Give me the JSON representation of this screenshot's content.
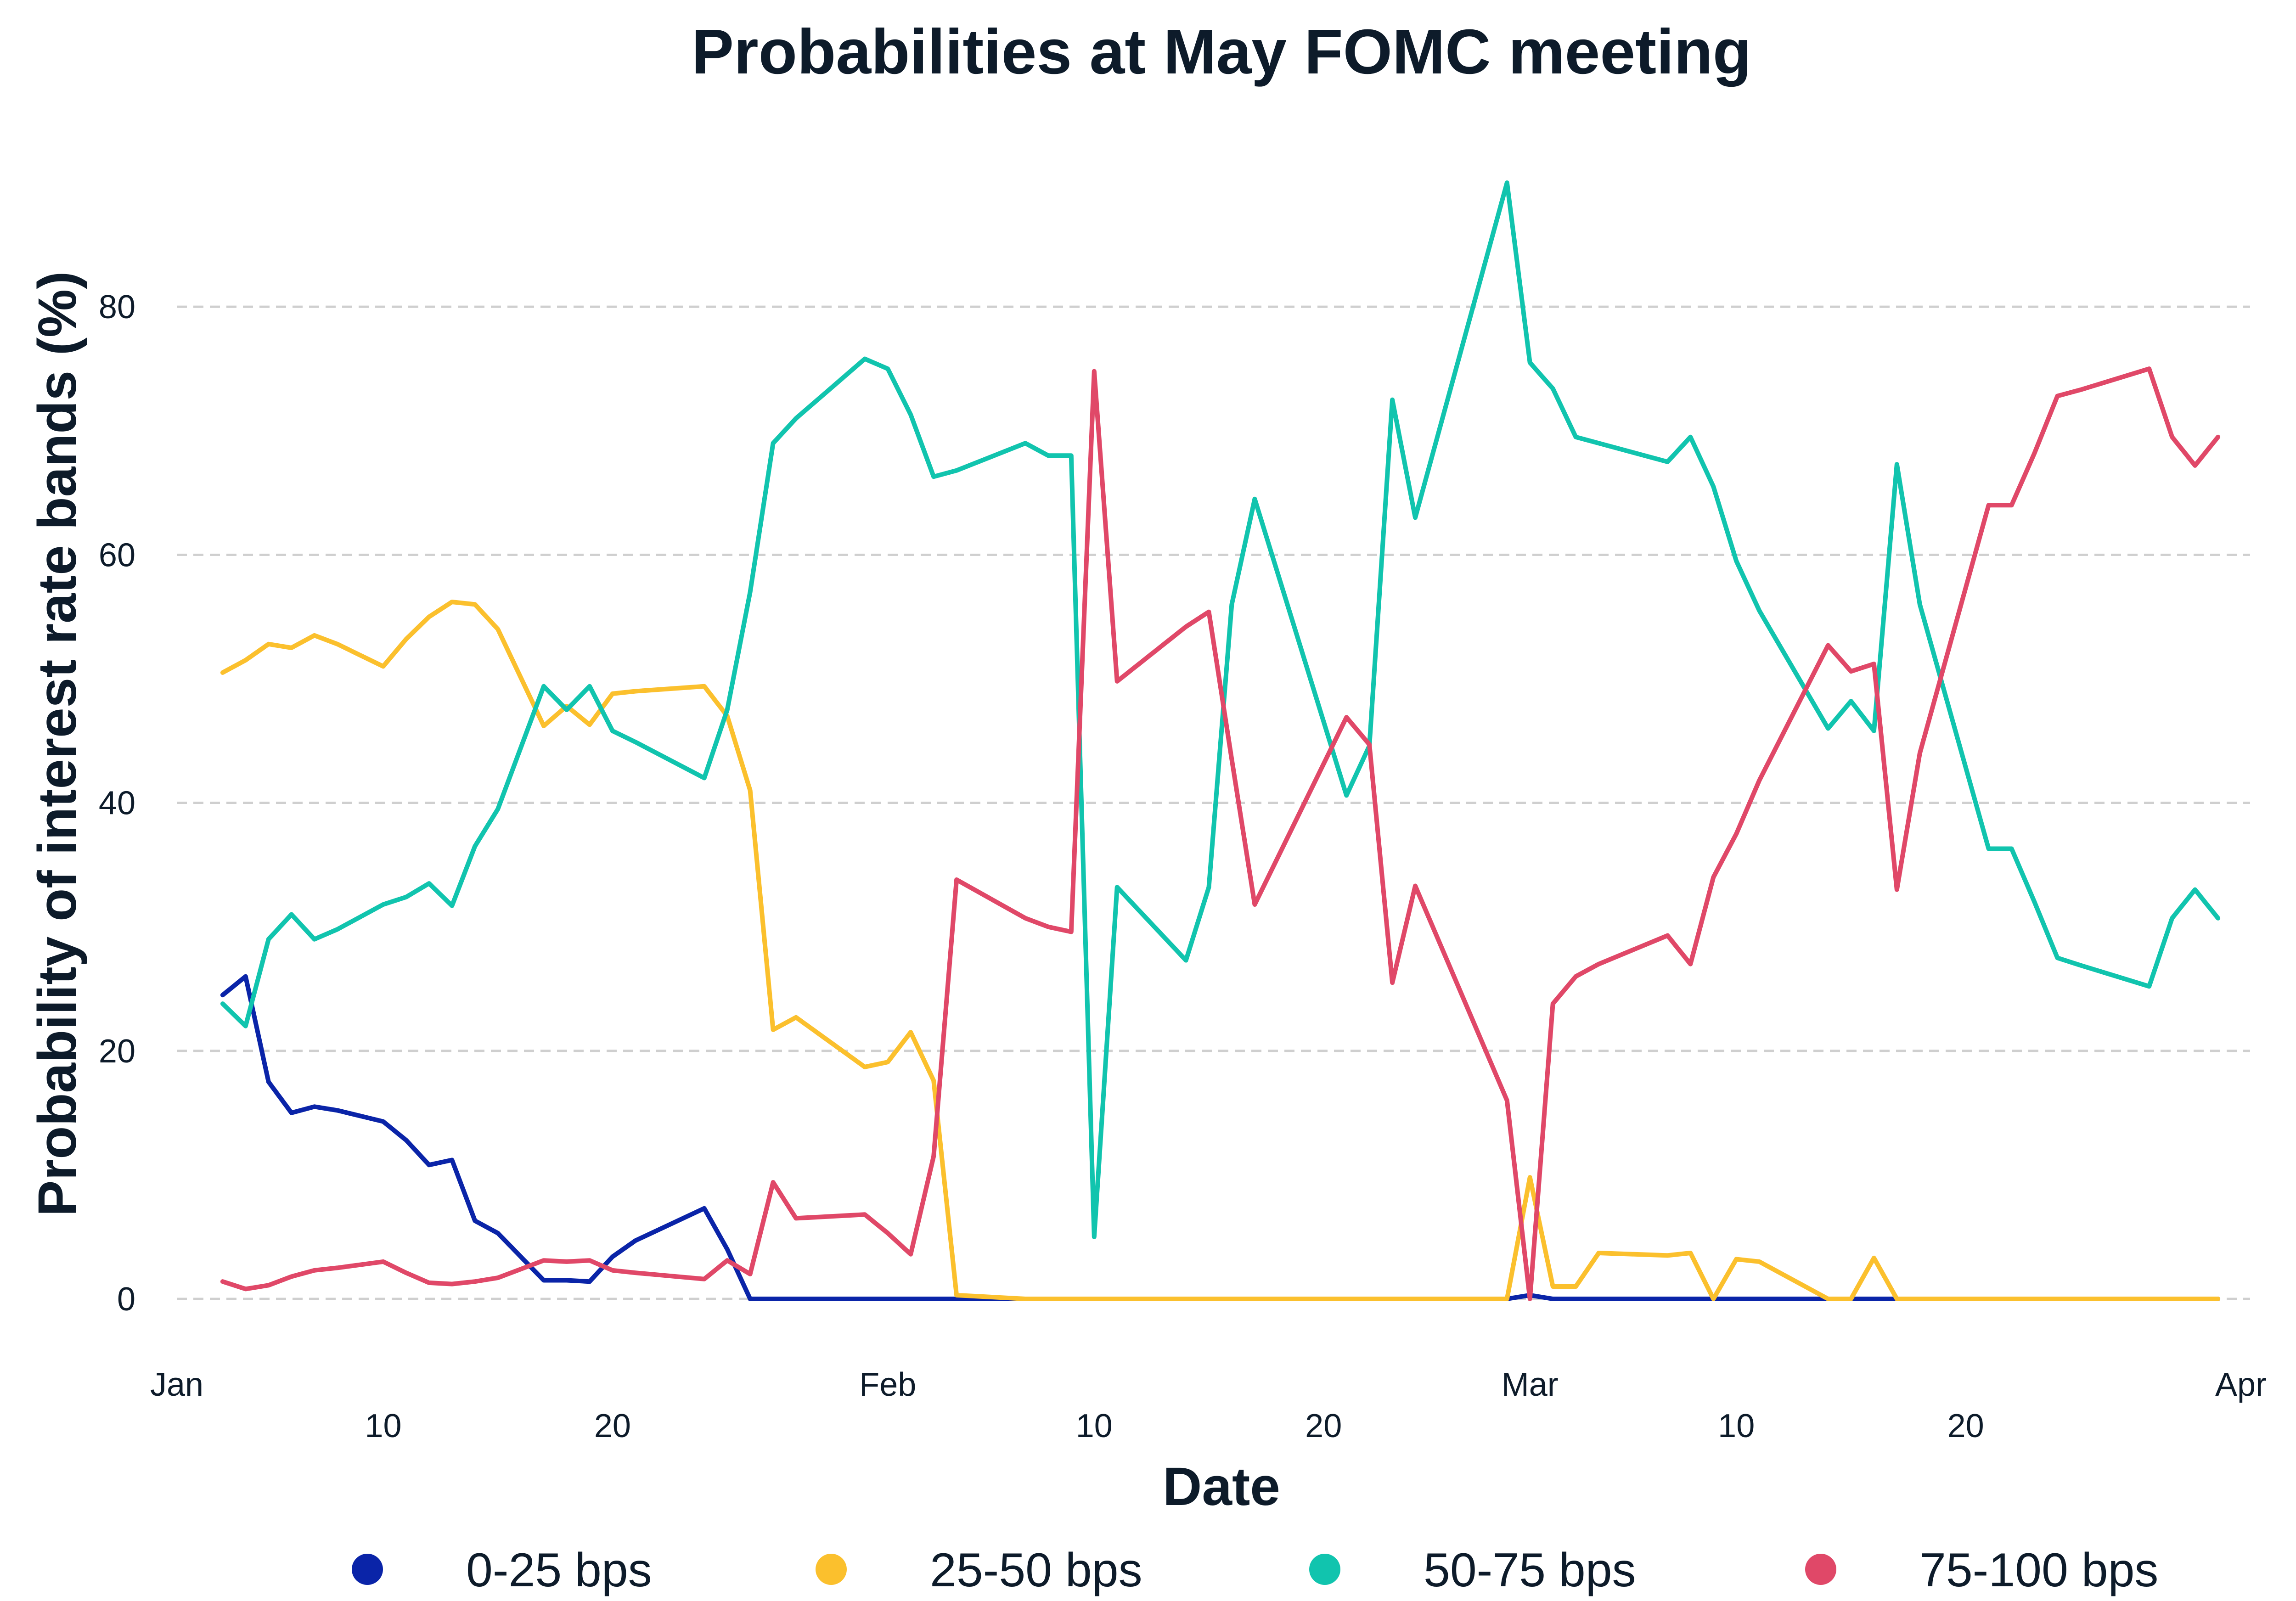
{
  "chart_data": {
    "type": "line",
    "title": "Probabilities at May FOMC meeting",
    "xlabel": "Date",
    "ylabel": "Probability of interest rate bands (%)",
    "ylim": [
      -3,
      94
    ],
    "xlim": [
      "2023-01-01",
      "2023-04-01"
    ],
    "yticks": [
      0,
      20,
      40,
      60,
      80
    ],
    "xticks": [
      {
        "date": "2023-01-01",
        "label": "Jan",
        "row": 0
      },
      {
        "date": "2023-01-10",
        "label": "10",
        "row": 1
      },
      {
        "date": "2023-01-20",
        "label": "20",
        "row": 1
      },
      {
        "date": "2023-02-01",
        "label": "Feb",
        "row": 0
      },
      {
        "date": "2023-02-10",
        "label": "10",
        "row": 1
      },
      {
        "date": "2023-02-20",
        "label": "20",
        "row": 1
      },
      {
        "date": "2023-03-01",
        "label": "Mar",
        "row": 0
      },
      {
        "date": "2023-03-10",
        "label": "10",
        "row": 1
      },
      {
        "date": "2023-03-20",
        "label": "20",
        "row": 1
      },
      {
        "date": "2023-04-01",
        "label": "Apr",
        "row": 0
      }
    ],
    "grid": true,
    "legend": "bottom",
    "x": [
      "2023-01-03",
      "2023-01-04",
      "2023-01-05",
      "2023-01-06",
      "2023-01-07",
      "2023-01-08",
      "2023-01-10",
      "2023-01-11",
      "2023-01-12",
      "2023-01-13",
      "2023-01-14",
      "2023-01-15",
      "2023-01-17",
      "2023-01-18",
      "2023-01-19",
      "2023-01-20",
      "2023-01-21",
      "2023-01-24",
      "2023-01-25",
      "2023-01-26",
      "2023-01-27",
      "2023-01-28",
      "2023-01-31",
      "2023-02-01",
      "2023-02-02",
      "2023-02-03",
      "2023-02-04",
      "2023-02-07",
      "2023-02-08",
      "2023-02-09",
      "2023-02-10",
      "2023-02-11",
      "2023-02-14",
      "2023-02-15",
      "2023-02-16",
      "2023-02-17",
      "2023-02-21",
      "2023-02-22",
      "2023-02-23",
      "2023-02-24",
      "2023-02-28",
      "2023-03-01",
      "2023-03-02",
      "2023-03-03",
      "2023-03-04",
      "2023-03-07",
      "2023-03-08",
      "2023-03-09",
      "2023-03-10",
      "2023-03-11",
      "2023-03-14",
      "2023-03-15",
      "2023-03-16",
      "2023-03-17",
      "2023-03-18",
      "2023-03-21",
      "2023-03-22",
      "2023-03-23",
      "2023-03-24",
      "2023-03-25",
      "2023-03-28",
      "2023-03-29",
      "2023-03-30",
      "2023-03-31"
    ],
    "series": [
      {
        "name": "0-25 bps",
        "color": "#0a24a8",
        "values": [
          24.5,
          26.0,
          17.5,
          15.0,
          15.5,
          15.2,
          14.3,
          12.8,
          10.8,
          11.2,
          6.3,
          5.3,
          1.5,
          1.5,
          1.4,
          3.4,
          4.7,
          7.3,
          4.0,
          0.0,
          0.0,
          0.0,
          0.0,
          0.0,
          0.0,
          0.0,
          0.0,
          0.0,
          0.0,
          0.0,
          0.0,
          0.0,
          0.0,
          0.0,
          0.0,
          0.0,
          0.0,
          0.0,
          0.0,
          0.0,
          0.0,
          0.3,
          0.0,
          0.0,
          0.0,
          0.0,
          0.0,
          0.0,
          0.0,
          0.0,
          0.0,
          0.0,
          0.0,
          0.0,
          0.0,
          0.0,
          0.0,
          0.0,
          0.0,
          0.0,
          0.0,
          0.0,
          0.0,
          0.0
        ]
      },
      {
        "name": "25-50 bps",
        "color": "#fbc02d",
        "values": [
          50.5,
          51.5,
          52.8,
          52.5,
          53.5,
          52.8,
          51.0,
          53.2,
          55.0,
          56.2,
          56.0,
          54.0,
          46.2,
          47.8,
          46.3,
          48.8,
          49.0,
          49.4,
          47.0,
          41.0,
          21.7,
          22.7,
          18.7,
          19.1,
          21.5,
          17.6,
          0.3,
          0.0,
          0.0,
          0.0,
          0.0,
          0.0,
          0.0,
          0.0,
          0.0,
          0.0,
          0.0,
          0.0,
          0.0,
          0.0,
          0.0,
          9.8,
          1.0,
          1.0,
          3.7,
          3.5,
          3.7,
          0.0,
          3.2,
          3.0,
          0.0,
          0.0,
          3.3,
          0.0,
          0.0,
          0.0,
          0.0,
          0.0,
          0.0,
          0.0,
          0.0,
          0.0,
          0.0,
          0.0
        ]
      },
      {
        "name": "50-75 bps",
        "color": "#11c4ae",
        "values": [
          23.8,
          22.0,
          29.0,
          31.0,
          29.0,
          29.8,
          31.8,
          32.4,
          33.5,
          31.7,
          36.5,
          39.5,
          49.4,
          47.5,
          49.4,
          45.8,
          44.9,
          42.0,
          47.5,
          57.0,
          69.0,
          71.0,
          75.8,
          75.0,
          71.3,
          66.3,
          66.8,
          69.0,
          68.0,
          68.0,
          5.0,
          33.2,
          27.3,
          33.2,
          56.0,
          64.5,
          40.6,
          44.6,
          72.5,
          63.0,
          90.0,
          75.5,
          73.4,
          69.5,
          69.0,
          67.5,
          69.5,
          65.5,
          59.5,
          55.5,
          46.0,
          48.2,
          45.8,
          67.3,
          56.0,
          36.3,
          36.3,
          32.0,
          27.5,
          26.9,
          25.2,
          30.7,
          33.0,
          30.7
        ]
      },
      {
        "name": "75-100 bps",
        "color": "#e04868",
        "values": [
          1.4,
          0.8,
          1.1,
          1.8,
          2.3,
          2.5,
          3.0,
          2.1,
          1.3,
          1.2,
          1.4,
          1.7,
          3.1,
          3.0,
          3.1,
          2.3,
          2.1,
          1.6,
          3.1,
          2.0,
          9.4,
          6.5,
          6.8,
          5.3,
          3.6,
          11.5,
          33.8,
          30.7,
          30.0,
          29.6,
          74.8,
          49.8,
          54.2,
          55.4,
          43.5,
          31.8,
          46.9,
          44.7,
          25.5,
          33.3,
          16.0,
          0.0,
          23.8,
          26.0,
          27.0,
          29.3,
          27.0,
          34.0,
          37.5,
          41.8,
          52.7,
          50.6,
          51.2,
          33.0,
          44.0,
          64.0,
          64.0,
          68.2,
          72.8,
          73.3,
          75.0,
          69.5,
          67.2,
          69.5
        ]
      }
    ]
  }
}
